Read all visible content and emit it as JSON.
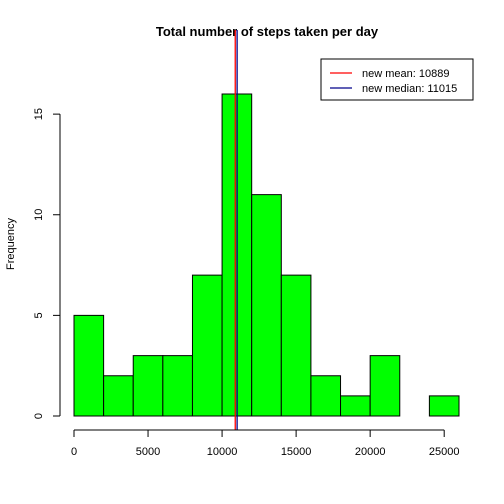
{
  "chart_data": {
    "type": "bar",
    "title": "Total number of steps taken per day",
    "xlabel": "",
    "ylabel": "Frequency",
    "bin_edges": [
      0,
      2000,
      4000,
      6000,
      8000,
      10000,
      12000,
      14000,
      16000,
      18000,
      20000,
      22000,
      24000,
      26000
    ],
    "values": [
      5,
      2,
      3,
      3,
      7,
      16,
      11,
      7,
      2,
      1,
      3,
      0,
      1
    ],
    "bar_color": "#00ff00",
    "xlim": [
      0,
      26000
    ],
    "ylim": [
      0,
      16
    ],
    "x_ticks": [
      0,
      5000,
      10000,
      15000,
      20000,
      25000
    ],
    "x_tick_labels": [
      "0",
      "5000",
      "10000",
      "15000",
      "20000",
      "25000"
    ],
    "y_ticks": [
      0,
      5,
      10,
      15
    ],
    "y_tick_labels": [
      "0",
      "5",
      "10",
      "15"
    ],
    "vlines": [
      {
        "label": "new mean: 10889",
        "value": 10889,
        "color": "#ff0000"
      },
      {
        "label": "new median: 11015",
        "value": 11015,
        "color": "#00008b"
      }
    ],
    "legend_position": "top-right",
    "grid": false
  }
}
